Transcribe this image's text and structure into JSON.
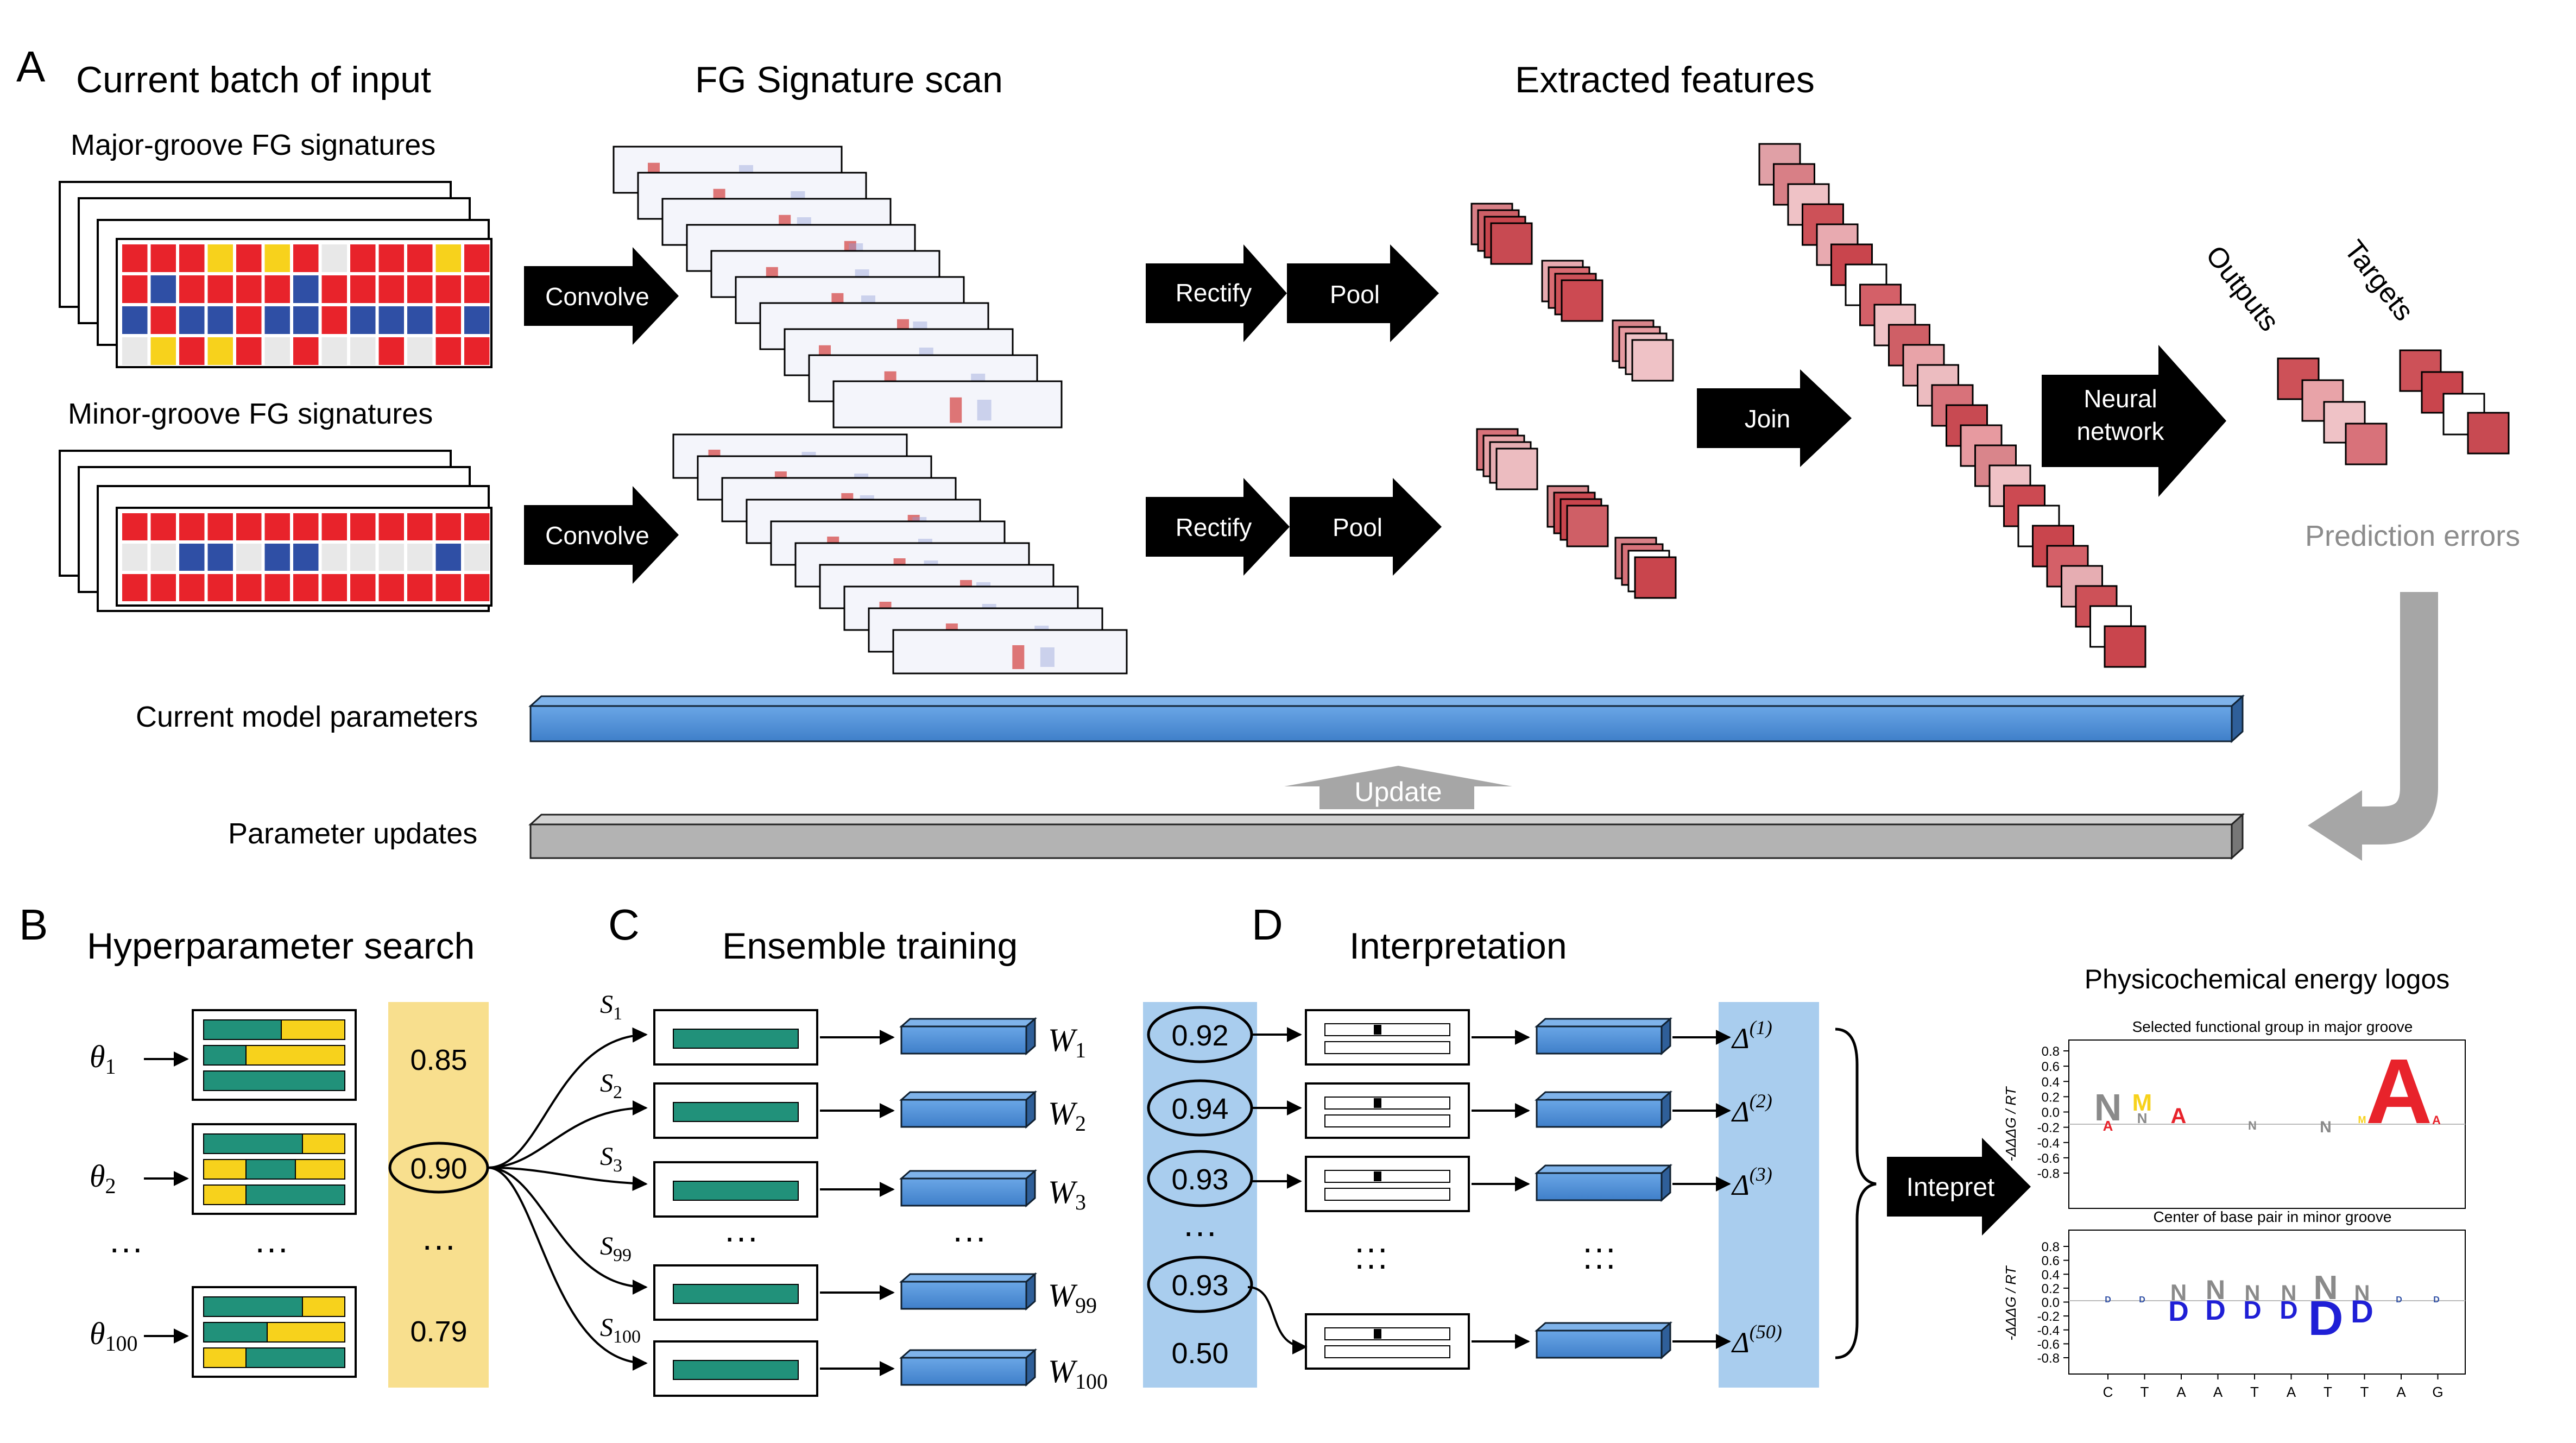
{
  "panels": {
    "a": {
      "letter": "A",
      "title_input": "Current batch of input",
      "title_scan": "FG Signature scan",
      "title_features": "Extracted features",
      "major_label": "Major-groove FG signatures",
      "minor_label": "Minor-groove FG signatures",
      "convolve": "Convolve",
      "rectify": "Rectify",
      "pool": "Pool",
      "join": "Join",
      "nn_line1": "Neural",
      "nn_line2": "network",
      "outputs": "Outputs",
      "targets": "Targets",
      "prediction_errors": "Prediction errors",
      "current_params": "Current model parameters",
      "param_updates": "Parameter updates",
      "update": "Update"
    },
    "b": {
      "letter": "B",
      "title": "Hyperparameter search",
      "theta": "θ",
      "theta_subs": [
        "1",
        "2",
        "100"
      ],
      "dots": "···",
      "scores": [
        "0.85",
        "0.90",
        "···",
        "0.79"
      ]
    },
    "c": {
      "letter": "C",
      "title": "Ensemble training",
      "s": "S",
      "s_subs": [
        "1",
        "2",
        "3",
        "99",
        "100"
      ],
      "w": "W",
      "w_subs": [
        "1",
        "2",
        "3",
        "99",
        "100"
      ],
      "dots": "···"
    },
    "d": {
      "letter": "D",
      "title": "Interpretation",
      "scores": [
        "0.92",
        "0.94",
        "0.93",
        "···",
        "0.93",
        "0.50"
      ],
      "delta": "Δ",
      "delta_sups": [
        "(1)",
        "(2)",
        "(3)",
        "(50)"
      ],
      "dots": "···",
      "interpret": "Intepret"
    },
    "logos": {
      "title": "Physicochemical energy logos",
      "top_subtitle": "Selected functional group in major groove",
      "bottom_subtitle": "Center of base pair in minor groove",
      "ylabel": "-ΔΔΔG / RT",
      "yticks": [
        "0.8",
        "0.6",
        "0.4",
        "0.2",
        "0.0",
        "-0.2",
        "-0.4",
        "-0.6",
        "-0.8"
      ],
      "xticks": [
        "C",
        "T",
        "A",
        "A",
        "T",
        "A",
        "T",
        "T",
        "A",
        "G"
      ]
    }
  },
  "colors": {
    "red": "#e8232b",
    "blue": "#2f4fa5",
    "yellow": "#f7d21c",
    "grey_cell": "#e8e8e8",
    "green": "#21917a",
    "box_blue": "#4d90d8",
    "bar_grey": "#b3b3b3",
    "panel_yellow": "#f8df8e",
    "panel_blue": "#a9cdee",
    "feature_dark": "#c9454d",
    "feature_light": "#ecbcc0"
  }
}
